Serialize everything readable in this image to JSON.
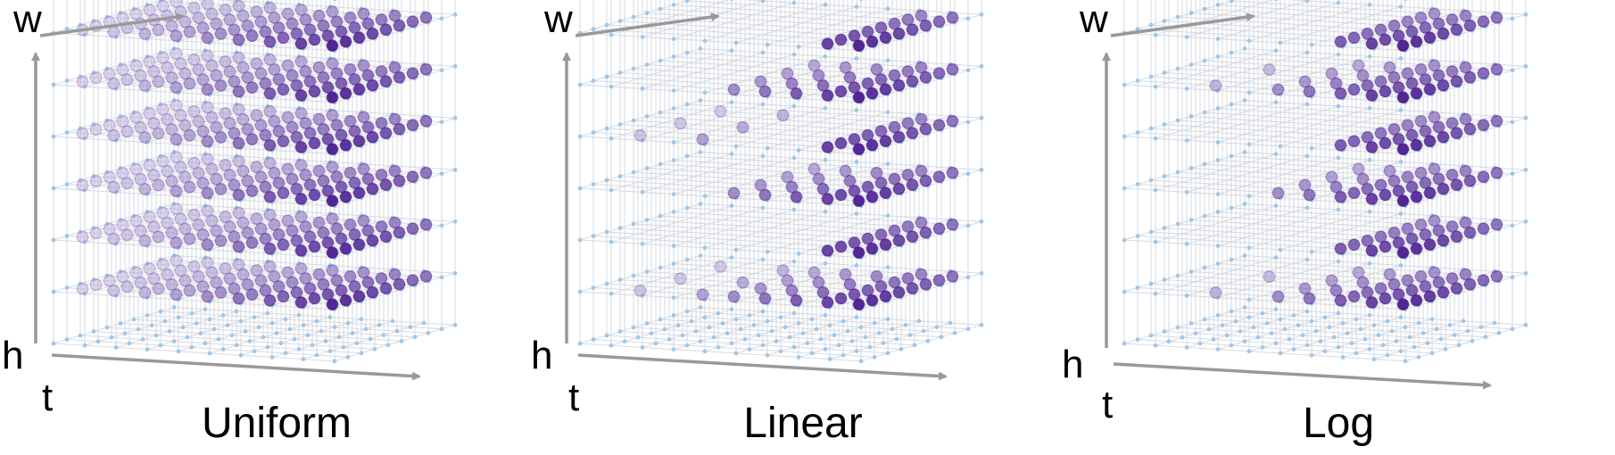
{
  "panels": [
    {
      "title": "Uniform",
      "w_label": "w",
      "h_label": "h",
      "t_label": "t",
      "sampling": "uniform"
    },
    {
      "title": "Linear",
      "w_label": "w",
      "h_label": "h",
      "t_label": "t",
      "sampling": "linear"
    },
    {
      "title": "Log",
      "w_label": "w",
      "h_label": "h",
      "t_label": "t",
      "sampling": "log"
    }
  ],
  "colors": {
    "grid_line": "#cfd3da",
    "grid_node": "#9ec8ea",
    "axis_arrow": "#999999",
    "sample_dark": "#3f0f8a",
    "sample_light": "#c8c0e4"
  }
}
